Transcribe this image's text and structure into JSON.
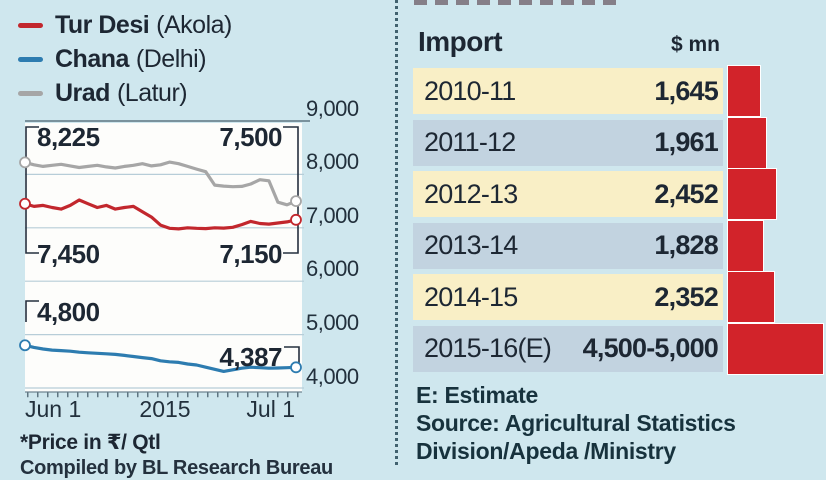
{
  "chart_data": [
    {
      "type": "line",
      "title": "",
      "x_labels": [
        "Jun 1",
        "2015",
        "Jul 1"
      ],
      "y_ticks": [
        "9,000",
        "8,000",
        "7,000",
        "6,000",
        "5,000",
        "4,000"
      ],
      "ylim": [
        4000,
        9000
      ],
      "grid": true,
      "legend_position": "top-left",
      "footnote": "*Price in ₹/ Qtl",
      "compiled_by": "Compiled by BL Research Bureau",
      "series": [
        {
          "name": "Tur Desi",
          "location": "(Akola)",
          "color": "#c2272d",
          "start_label": "7,450",
          "end_label": "7,150",
          "values": [
            7450,
            7400,
            7420,
            7380,
            7350,
            7420,
            7520,
            7450,
            7380,
            7420,
            7350,
            7380,
            7400,
            7300,
            7200,
            7050,
            6990,
            6980,
            7000,
            6990,
            6985,
            7000,
            6995,
            7010,
            7060,
            7120,
            7080,
            7070,
            7090,
            7110,
            7150
          ]
        },
        {
          "name": "Chana",
          "location": "(Delhi)",
          "color": "#2d7cb0",
          "start_label": "4,800",
          "end_label": "4,387",
          "values": [
            4800,
            4760,
            4730,
            4710,
            4700,
            4690,
            4670,
            4660,
            4650,
            4640,
            4630,
            4610,
            4590,
            4570,
            4550,
            4510,
            4490,
            4480,
            4450,
            4430,
            4390,
            4350,
            4310,
            4340,
            4370,
            4390,
            4380,
            4370,
            4375,
            4380,
            4387
          ]
        },
        {
          "name": "Urad",
          "location": "(Latur)",
          "color": "#a6a6a6",
          "start_label": "8,225",
          "end_label": "7,500",
          "values": [
            8225,
            8180,
            8150,
            8170,
            8190,
            8160,
            8130,
            8150,
            8170,
            8140,
            8120,
            8150,
            8170,
            8200,
            8160,
            8180,
            8230,
            8200,
            8150,
            8100,
            8050,
            7800,
            7780,
            7770,
            7775,
            7820,
            7900,
            7880,
            7480,
            7430,
            7500
          ]
        }
      ]
    },
    {
      "type": "bar",
      "title": "Import",
      "unit": "$ mn",
      "categories": [
        "2010-11",
        "2011-12",
        "2012-13",
        "2013-14",
        "2014-15",
        "2015-16(E)"
      ],
      "display_values": [
        "1,645",
        "1,961",
        "2,452",
        "1,828",
        "2,352",
        "4,500-5,000"
      ],
      "values": [
        1645,
        1961,
        2452,
        1828,
        2352,
        4750
      ],
      "bar_color": "#d2232a",
      "row_colors": [
        "#f9efc6",
        "#c2d3e0"
      ],
      "note": "E: Estimate",
      "source": [
        "Source: Agricultural Statistics",
        "Division/Apeda /Ministry"
      ]
    }
  ]
}
